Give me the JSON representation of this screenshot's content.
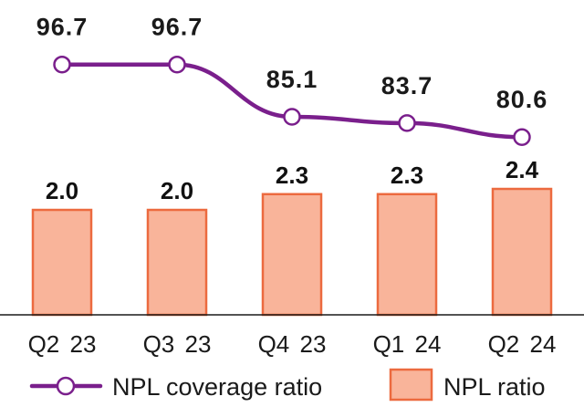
{
  "chart_data": {
    "type": "bar+line",
    "categories": [
      "Q2 23",
      "Q3 23",
      "Q4 23",
      "Q1 24",
      "Q2 24"
    ],
    "series": [
      {
        "name": "NPL coverage ratio",
        "type": "line",
        "values": [
          96.7,
          96.7,
          85.1,
          83.7,
          80.6
        ],
        "labels": [
          "96.7",
          "96.7",
          "85.1",
          "83.7",
          "80.6"
        ],
        "color": "#7a1f8c"
      },
      {
        "name": "NPL ratio",
        "type": "bar",
        "values": [
          2.0,
          2.0,
          2.3,
          2.3,
          2.4
        ],
        "labels": [
          "2.0",
          "2.0",
          "2.3",
          "2.3",
          "2.4"
        ],
        "color": "#f9b49a",
        "border_color": "#ec6a3f"
      }
    ],
    "title": "",
    "xlabel": "",
    "ylabel": "",
    "grid": false,
    "legend_position": "bottom"
  }
}
